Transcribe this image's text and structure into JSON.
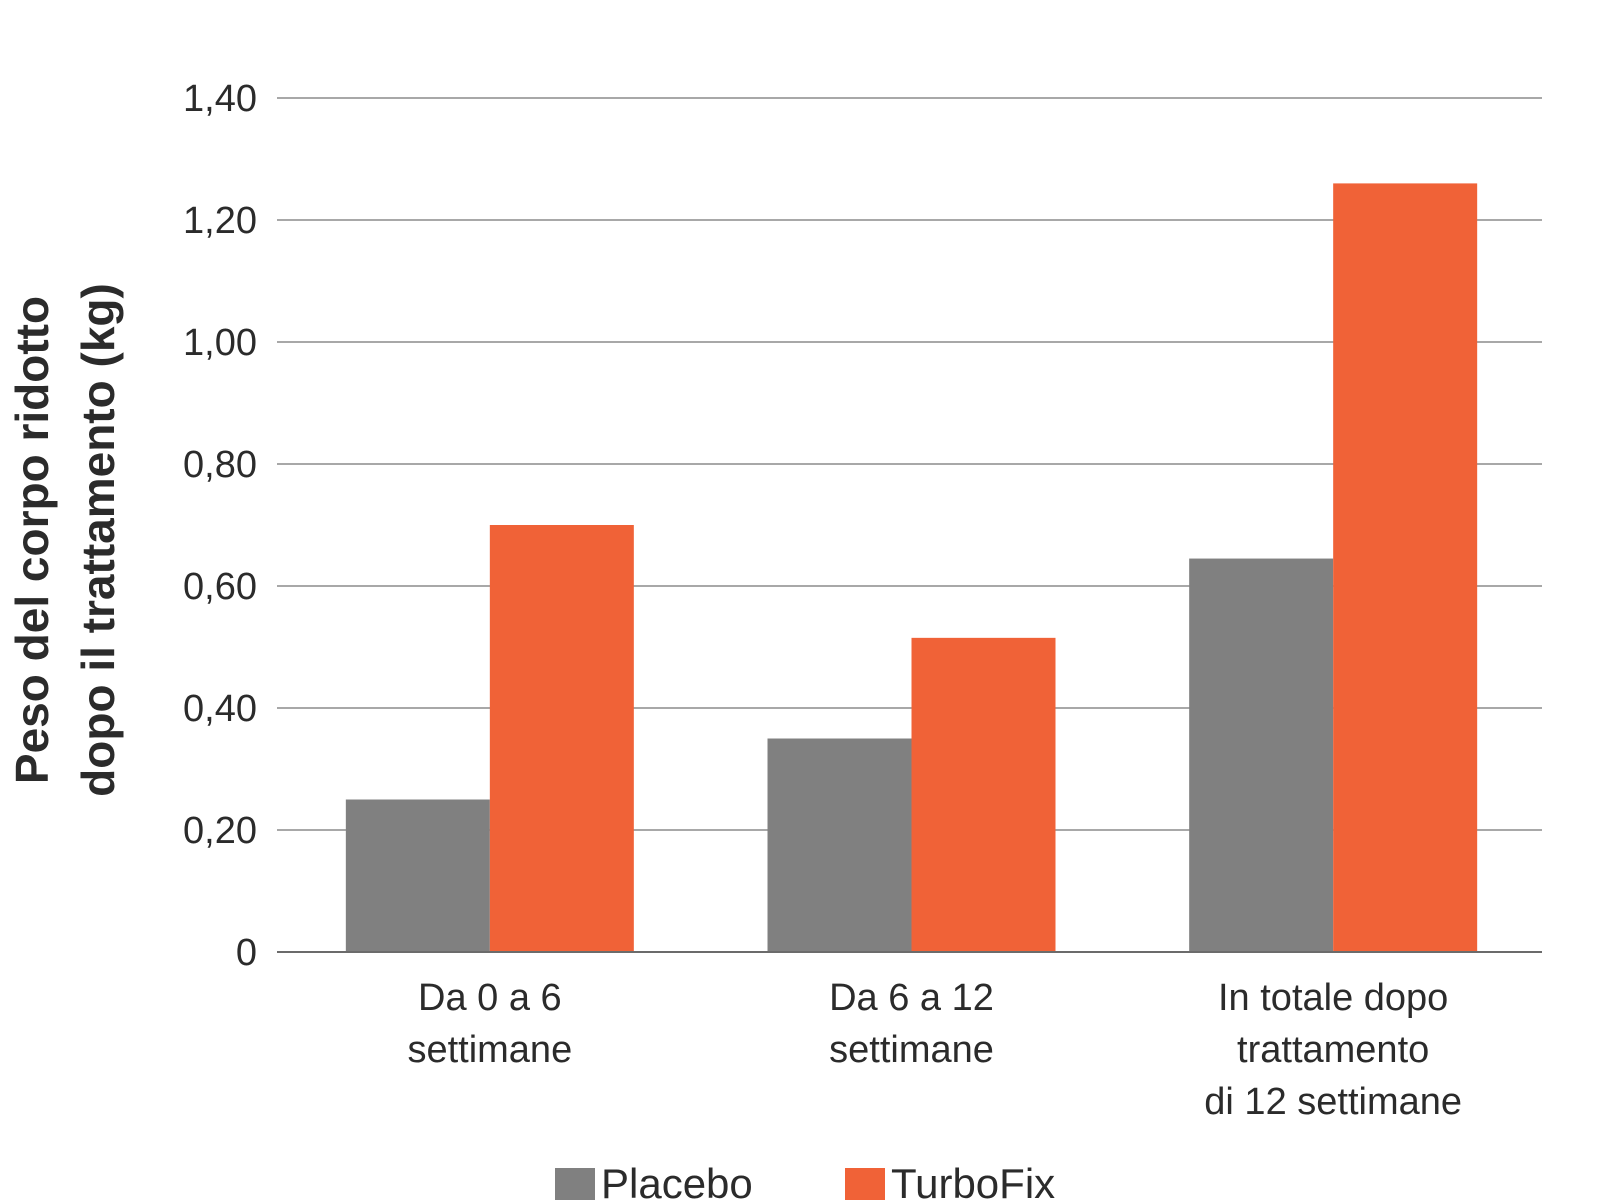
{
  "chart_data": {
    "type": "bar",
    "ylabel": "Peso del corpo ridotto dopo il trattamento (kg)",
    "ylabel_lines": [
      "Peso del corpo ridotto",
      "dopo il trattamento (kg)"
    ],
    "ylim": [
      0,
      1.4
    ],
    "yticks": [
      0,
      0.2,
      0.4,
      0.6,
      0.8,
      1.0,
      1.2,
      1.4
    ],
    "ytick_labels": [
      "0",
      "0,20",
      "0,40",
      "0,60",
      "0,80",
      "1,00",
      "1,20",
      "1,40"
    ],
    "grid": true,
    "legend_position": "bottom-center",
    "categories": [
      "Da 0 a 6 settimane",
      "Da 6 a 12 settimane",
      "In totale dopo trattamento di 12 settimane"
    ],
    "category_lines": [
      [
        "Da 0 a 6",
        "settimane"
      ],
      [
        "Da 6 a 12",
        "settimane"
      ],
      [
        "In totale dopo",
        "trattamento",
        "di 12 settimane"
      ]
    ],
    "series": [
      {
        "name": "Placebo",
        "color": "#808080",
        "values": [
          0.25,
          0.35,
          0.645
        ]
      },
      {
        "name": "TurboFix",
        "color": "#f06237",
        "values": [
          0.7,
          0.515,
          1.26
        ]
      }
    ]
  }
}
